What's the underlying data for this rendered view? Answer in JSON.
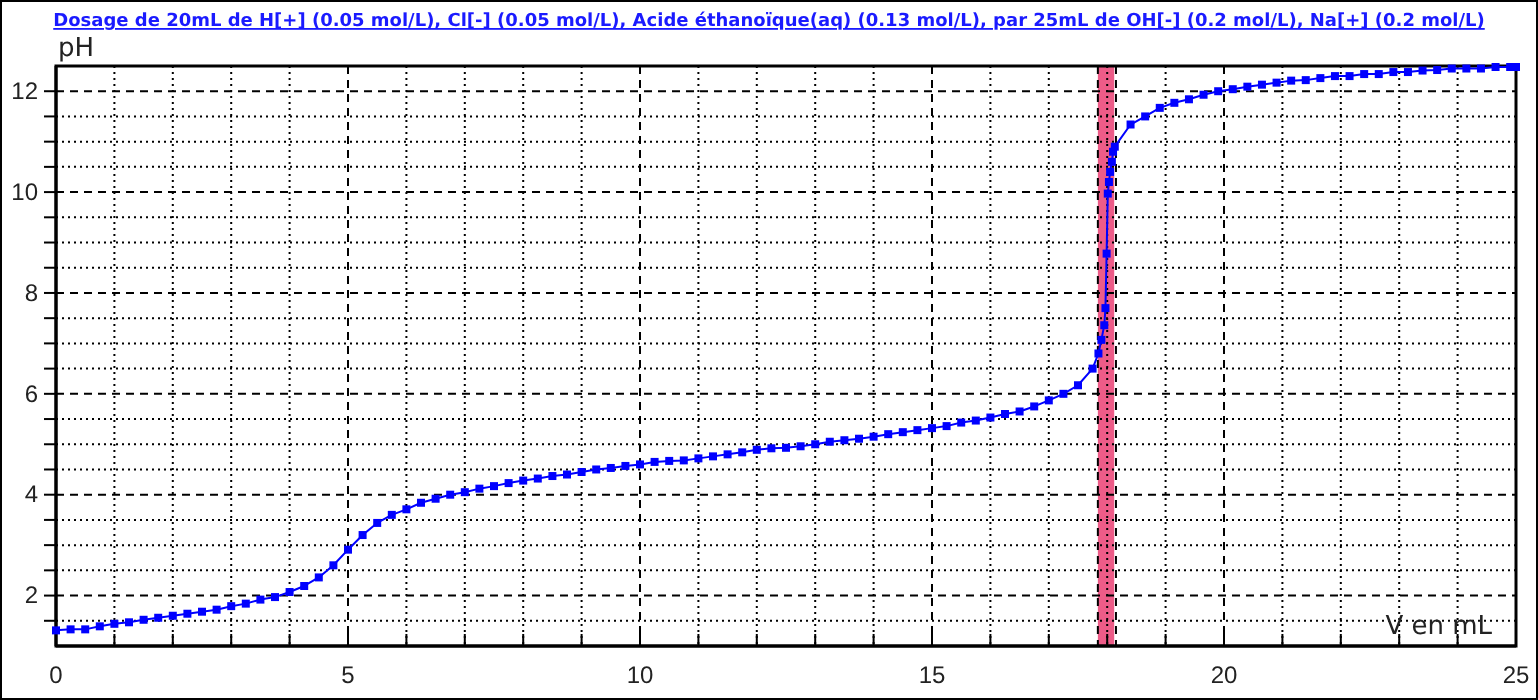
{
  "chart_data": {
    "type": "line",
    "title": "Dosage de 20mL de H[+] (0.05 mol/L), Cl[-] (0.05 mol/L), Acide éthanoïque(aq) (0.13 mol/L),  par 25mL  de OH[-] (0.2 mol/L), Na[+] (0.2 mol/L)",
    "xlabel": "V en mL",
    "ylabel": "pH",
    "x": [
      0,
      0.25,
      0.5,
      0.75,
      1,
      1.25,
      1.5,
      1.75,
      2,
      2.25,
      2.5,
      2.75,
      3,
      3.25,
      3.5,
      3.75,
      4,
      4.25,
      4.5,
      4.75,
      5,
      5.25,
      5.5,
      5.75,
      6,
      6.25,
      6.5,
      6.75,
      7,
      7.25,
      7.5,
      7.75,
      8,
      8.25,
      8.5,
      8.75,
      9,
      9.25,
      9.5,
      9.75,
      10,
      10.25,
      10.5,
      10.75,
      11,
      11.25,
      11.5,
      11.75,
      12,
      12.25,
      12.5,
      12.75,
      13,
      13.25,
      13.5,
      13.75,
      14,
      14.25,
      14.5,
      14.75,
      15,
      15.25,
      15.5,
      15.75,
      16,
      16.25,
      16.5,
      16.75,
      17,
      17.25,
      17.5,
      17.75,
      17.85,
      17.9,
      17.95,
      17.97,
      17.99,
      18.01,
      18.03,
      18.05,
      18.08,
      18.1,
      18.13,
      18.4,
      18.65,
      18.9,
      19.15,
      19.4,
      19.65,
      19.9,
      20.15,
      20.4,
      20.65,
      20.9,
      21.15,
      21.4,
      21.65,
      21.9,
      22.15,
      22.4,
      22.65,
      22.9,
      23.15,
      23.4,
      23.65,
      23.9,
      24.15,
      24.4,
      24.65,
      24.9,
      25
    ],
    "series": [
      {
        "color": "#0000ff",
        "values": [
          1.31,
          1.33,
          1.33,
          1.39,
          1.44,
          1.47,
          1.52,
          1.56,
          1.6,
          1.64,
          1.68,
          1.72,
          1.79,
          1.84,
          1.92,
          1.97,
          2.07,
          2.19,
          2.36,
          2.6,
          2.91,
          3.2,
          3.44,
          3.6,
          3.71,
          3.84,
          3.92,
          4.0,
          4.05,
          4.12,
          4.17,
          4.23,
          4.28,
          4.32,
          4.37,
          4.4,
          4.45,
          4.5,
          4.53,
          4.57,
          4.6,
          4.65,
          4.67,
          4.68,
          4.72,
          4.76,
          4.8,
          4.84,
          4.89,
          4.92,
          4.93,
          4.96,
          5.0,
          5.05,
          5.08,
          5.11,
          5.15,
          5.2,
          5.24,
          5.28,
          5.32,
          5.36,
          5.43,
          5.47,
          5.53,
          5.6,
          5.65,
          5.75,
          5.87,
          6.0,
          6.17,
          6.5,
          6.8,
          7.07,
          7.36,
          7.7,
          8.78,
          9.97,
          10.2,
          10.4,
          10.6,
          10.8,
          10.9,
          11.34,
          11.5,
          11.67,
          11.77,
          11.84,
          11.93,
          12.0,
          12.04,
          12.09,
          12.13,
          12.17,
          12.21,
          12.22,
          12.26,
          12.3,
          12.3,
          12.34,
          12.34,
          12.38,
          12.38,
          12.41,
          12.42,
          12.45,
          12.45,
          12.45,
          12.48,
          12.48,
          12.48
        ]
      }
    ],
    "xlim": [
      0,
      25
    ],
    "ylim": [
      1,
      12.5
    ],
    "xticks": [
      0,
      {
        "value": 1,
        "label": null
      },
      {
        "value": 2,
        "label": null
      },
      {
        "value": 3,
        "label": null
      },
      {
        "value": 4,
        "label": null
      },
      5,
      {
        "value": 6,
        "label": null
      },
      {
        "value": 7,
        "label": null
      },
      {
        "value": 8,
        "label": null
      },
      {
        "value": 9,
        "label": null
      },
      10,
      {
        "value": 11,
        "label": null
      },
      {
        "value": 12,
        "label": null
      },
      {
        "value": 13,
        "label": null
      },
      {
        "value": 14,
        "label": null
      },
      15,
      {
        "value": 16,
        "label": null
      },
      {
        "value": 17,
        "label": null
      },
      {
        "value": 18,
        "label": null
      },
      {
        "value": 19,
        "label": null
      },
      20,
      {
        "value": 21,
        "label": null
      },
      {
        "value": 22,
        "label": null
      },
      {
        "value": 23,
        "label": null
      },
      {
        "value": 24,
        "label": null
      },
      25
    ],
    "yticks": [
      {
        "value": 1.5,
        "label": null
      },
      2,
      {
        "value": 2.5,
        "label": null
      },
      {
        "value": 3,
        "label": null
      },
      {
        "value": 3.5,
        "label": null
      },
      4,
      {
        "value": 4.5,
        "label": null
      },
      {
        "value": 5,
        "label": null
      },
      {
        "value": 5.5,
        "label": null
      },
      6,
      {
        "value": 6.5,
        "label": null
      },
      {
        "value": 7,
        "label": null
      },
      {
        "value": 7.5,
        "label": null
      },
      8,
      {
        "value": 8.5,
        "label": null
      },
      {
        "value": 9,
        "label": null
      },
      {
        "value": 9.5,
        "label": null
      },
      10,
      {
        "value": 10.5,
        "label": null
      },
      {
        "value": 11,
        "label": null
      },
      {
        "value": 11.5,
        "label": null
      },
      12
    ],
    "grid": true,
    "marker": "square",
    "line_style": "solid",
    "bands": [
      {
        "axis": "x",
        "from": 17.84,
        "to": 18.12,
        "color": "#e8336a"
      }
    ],
    "ref_lines": [
      {
        "axis": "x",
        "value": 17.84,
        "line_style": "dashed"
      },
      {
        "axis": "x",
        "value": 18.15,
        "line_style": "dashed"
      }
    ]
  }
}
